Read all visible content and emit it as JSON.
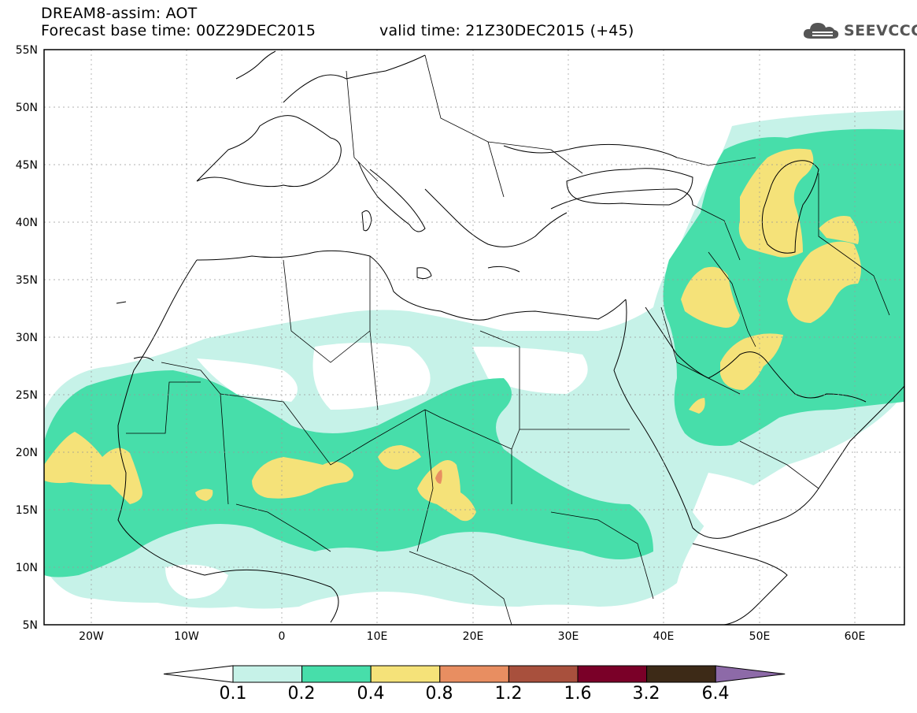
{
  "header": {
    "line1": "DREAM8-assim: AOT",
    "line2": "Forecast base time: 00Z29DEC2015",
    "valid": "valid time: 21Z30DEC2015 (+45)"
  },
  "logo": {
    "text": "SEEVCCC",
    "icon": "cloud-icon"
  },
  "map": {
    "lat_labels": [
      "55N",
      "50N",
      "45N",
      "40N",
      "35N",
      "30N",
      "25N",
      "20N",
      "15N",
      "10N",
      "5N"
    ],
    "lon_labels": [
      "20W",
      "10W",
      "0",
      "10E",
      "20E",
      "30E",
      "40E",
      "50E",
      "60E"
    ]
  },
  "colorbar": {
    "labels": [
      "0.1",
      "0.2",
      "0.4",
      "0.8",
      "1.2",
      "1.6",
      "3.2",
      "6.4"
    ],
    "colors": [
      "#ffffff",
      "#c6f2e8",
      "#47deaa",
      "#f5e279",
      "#e88e61",
      "#a8503d",
      "#7a0028",
      "#3d2a17",
      "#8d6aa8"
    ]
  }
}
